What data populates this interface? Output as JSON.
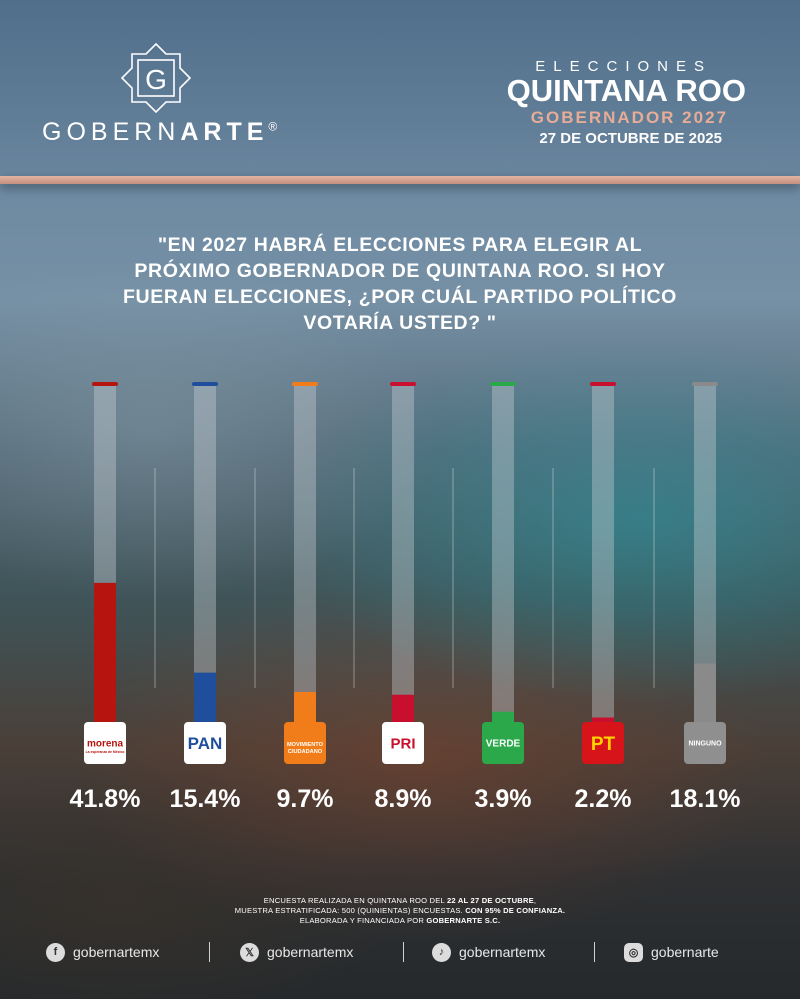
{
  "brand": {
    "name_light": "GOBERN",
    "name_bold": "ARTE",
    "registered": "®",
    "monogram": "G"
  },
  "title": {
    "kicker": "ELECCIONES",
    "state": "QUINTANA ROO",
    "office": "GOBERNADOR 2027",
    "date": "27 DE OCTUBRE DE 2025"
  },
  "question": "\"EN 2027 HABRÁ ELECCIONES PARA ELEGIR AL PRÓXIMO GOBERNADOR DE QUINTANA ROO. SI HOY FUERAN ELECCIONES, ¿POR CUÁL PARTIDO POLÍTICO VOTARÍA USTED? \"",
  "chart_data": {
    "type": "bar",
    "orientation": "vertical",
    "categories": [
      "MORENA",
      "PAN",
      "MOVIMIENTO CIUDADANO",
      "PRI",
      "VERDE",
      "PT",
      "NINGUNO"
    ],
    "values": [
      41.8,
      15.4,
      9.7,
      8.9,
      3.9,
      2.2,
      18.1
    ],
    "labels": [
      "41.8%",
      "15.4%",
      "9.7%",
      "8.9%",
      "3.9%",
      "2.2%",
      "18.1%"
    ],
    "colors": [
      "#b5140f",
      "#1f4f9c",
      "#f07d19",
      "#c8102e",
      "#2aa84a",
      "#c8102e",
      "#8a8a8a"
    ],
    "ylim": [
      0,
      100
    ],
    "unit": "%",
    "logos": [
      {
        "text": "morena",
        "sub": "La esperanza de México",
        "bg": "#ffffff",
        "fg": "#b5140f"
      },
      {
        "text": "PAN",
        "bg": "#ffffff",
        "fg": "#1f4f9c"
      },
      {
        "text": "MOVIMIENTO CIUDADANO",
        "bg": "#f07d19",
        "fg": "#ffffff"
      },
      {
        "text": "PRI",
        "bg": "#ffffff",
        "fg": "#c8102e"
      },
      {
        "text": "VERDE",
        "bg": "#2aa84a",
        "fg": "#ffffff"
      },
      {
        "text": "PT",
        "bg": "#d7141a",
        "fg": "#ffd200"
      },
      {
        "text": "NINGUNO",
        "bg": "#8f8f8f",
        "fg": "#ffffff"
      }
    ]
  },
  "note": {
    "line1_a": "ENCUESTA REALIZADA EN QUINTANA ROO DEL ",
    "line1_b": "22 AL 27 DE OCTUBRE",
    "line1_c": ",",
    "line2_a": "MUESTRA ESTRATIFICADA: 500 (QUINIENTAS) ENCUESTAS. ",
    "line2_b": "CON 95% DE CONFIANZA.",
    "line3_a": "ELABORADA Y FINANCIADA POR ",
    "line3_b": "GOBERNARTE S.C."
  },
  "socials": [
    {
      "icon": "facebook-icon",
      "glyph": "f",
      "handle": "gobernartemx"
    },
    {
      "icon": "x-icon",
      "glyph": "𝕏",
      "handle": "gobernartemx"
    },
    {
      "icon": "tiktok-icon",
      "glyph": "♪",
      "handle": "gobernartemx"
    },
    {
      "icon": "instagram-icon",
      "glyph": "◎",
      "handle": "gobernarte"
    }
  ]
}
